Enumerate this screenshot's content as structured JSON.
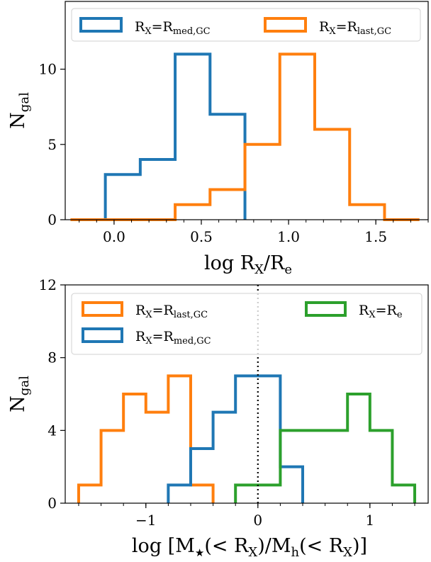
{
  "chart_data": [
    {
      "type": "histogram",
      "xlabel": "log R_X/R_e",
      "ylabel": "N_gal",
      "xlim": [
        -0.28,
        1.8
      ],
      "ylim": [
        0,
        14.5
      ],
      "xticks": [
        0.0,
        0.5,
        1.0,
        1.5
      ],
      "xtick_labels": [
        "0.0",
        "0.5",
        "1.0",
        "1.5"
      ],
      "yticks": [
        0,
        5,
        10
      ],
      "ytick_labels": [
        "0",
        "5",
        "10"
      ],
      "legend_placement": "top",
      "series": [
        {
          "name": "R_X=R_med,GC",
          "color": "#1f77b4",
          "bin_edges": [
            -0.05,
            0.15,
            0.35,
            0.55,
            0.75
          ],
          "counts": [
            3,
            4,
            11,
            7
          ]
        },
        {
          "name": "R_X=R_last,GC",
          "color": "#ff7f0e",
          "bin_edges": [
            -0.25,
            0.35,
            0.55,
            0.75,
            0.95,
            1.15,
            1.35,
            1.55,
            1.75
          ],
          "counts": [
            0,
            1,
            2,
            5,
            11,
            6,
            1,
            0
          ]
        }
      ]
    },
    {
      "type": "histogram",
      "xlabel": "log [M_★(< R_X)/M_h(< R_X)]",
      "ylabel": "N_gal",
      "xlim": [
        -1.72,
        1.52
      ],
      "ylim": [
        0,
        12
      ],
      "xticks": [
        -1,
        0,
        1
      ],
      "xtick_labels": [
        "−1",
        "0",
        "1"
      ],
      "yticks": [
        0,
        4,
        8,
        12
      ],
      "ytick_labels": [
        "0",
        "4",
        "8",
        "12"
      ],
      "vline": {
        "x": 0,
        "style": "dotted"
      },
      "legend_placement": "top",
      "series": [
        {
          "name": "R_X=R_last,GC",
          "color": "#ff7f0e",
          "bin_edges": [
            -1.6,
            -1.4,
            -1.2,
            -1.0,
            -0.8,
            -0.6,
            -0.4
          ],
          "counts": [
            1,
            4,
            6,
            5,
            7,
            1
          ]
        },
        {
          "name": "R_X=R_med,GC",
          "color": "#1f77b4",
          "bin_edges": [
            -0.8,
            -0.6,
            -0.4,
            -0.2,
            0.2,
            0.4
          ],
          "counts": [
            1,
            3,
            5,
            7,
            2
          ]
        },
        {
          "name": "R_X=R_e",
          "color": "#2ca02c",
          "bin_edges": [
            -0.2,
            0.2,
            0.8,
            1.0,
            1.2,
            1.4
          ],
          "counts": [
            1,
            4,
            6,
            4,
            1
          ]
        }
      ]
    }
  ]
}
